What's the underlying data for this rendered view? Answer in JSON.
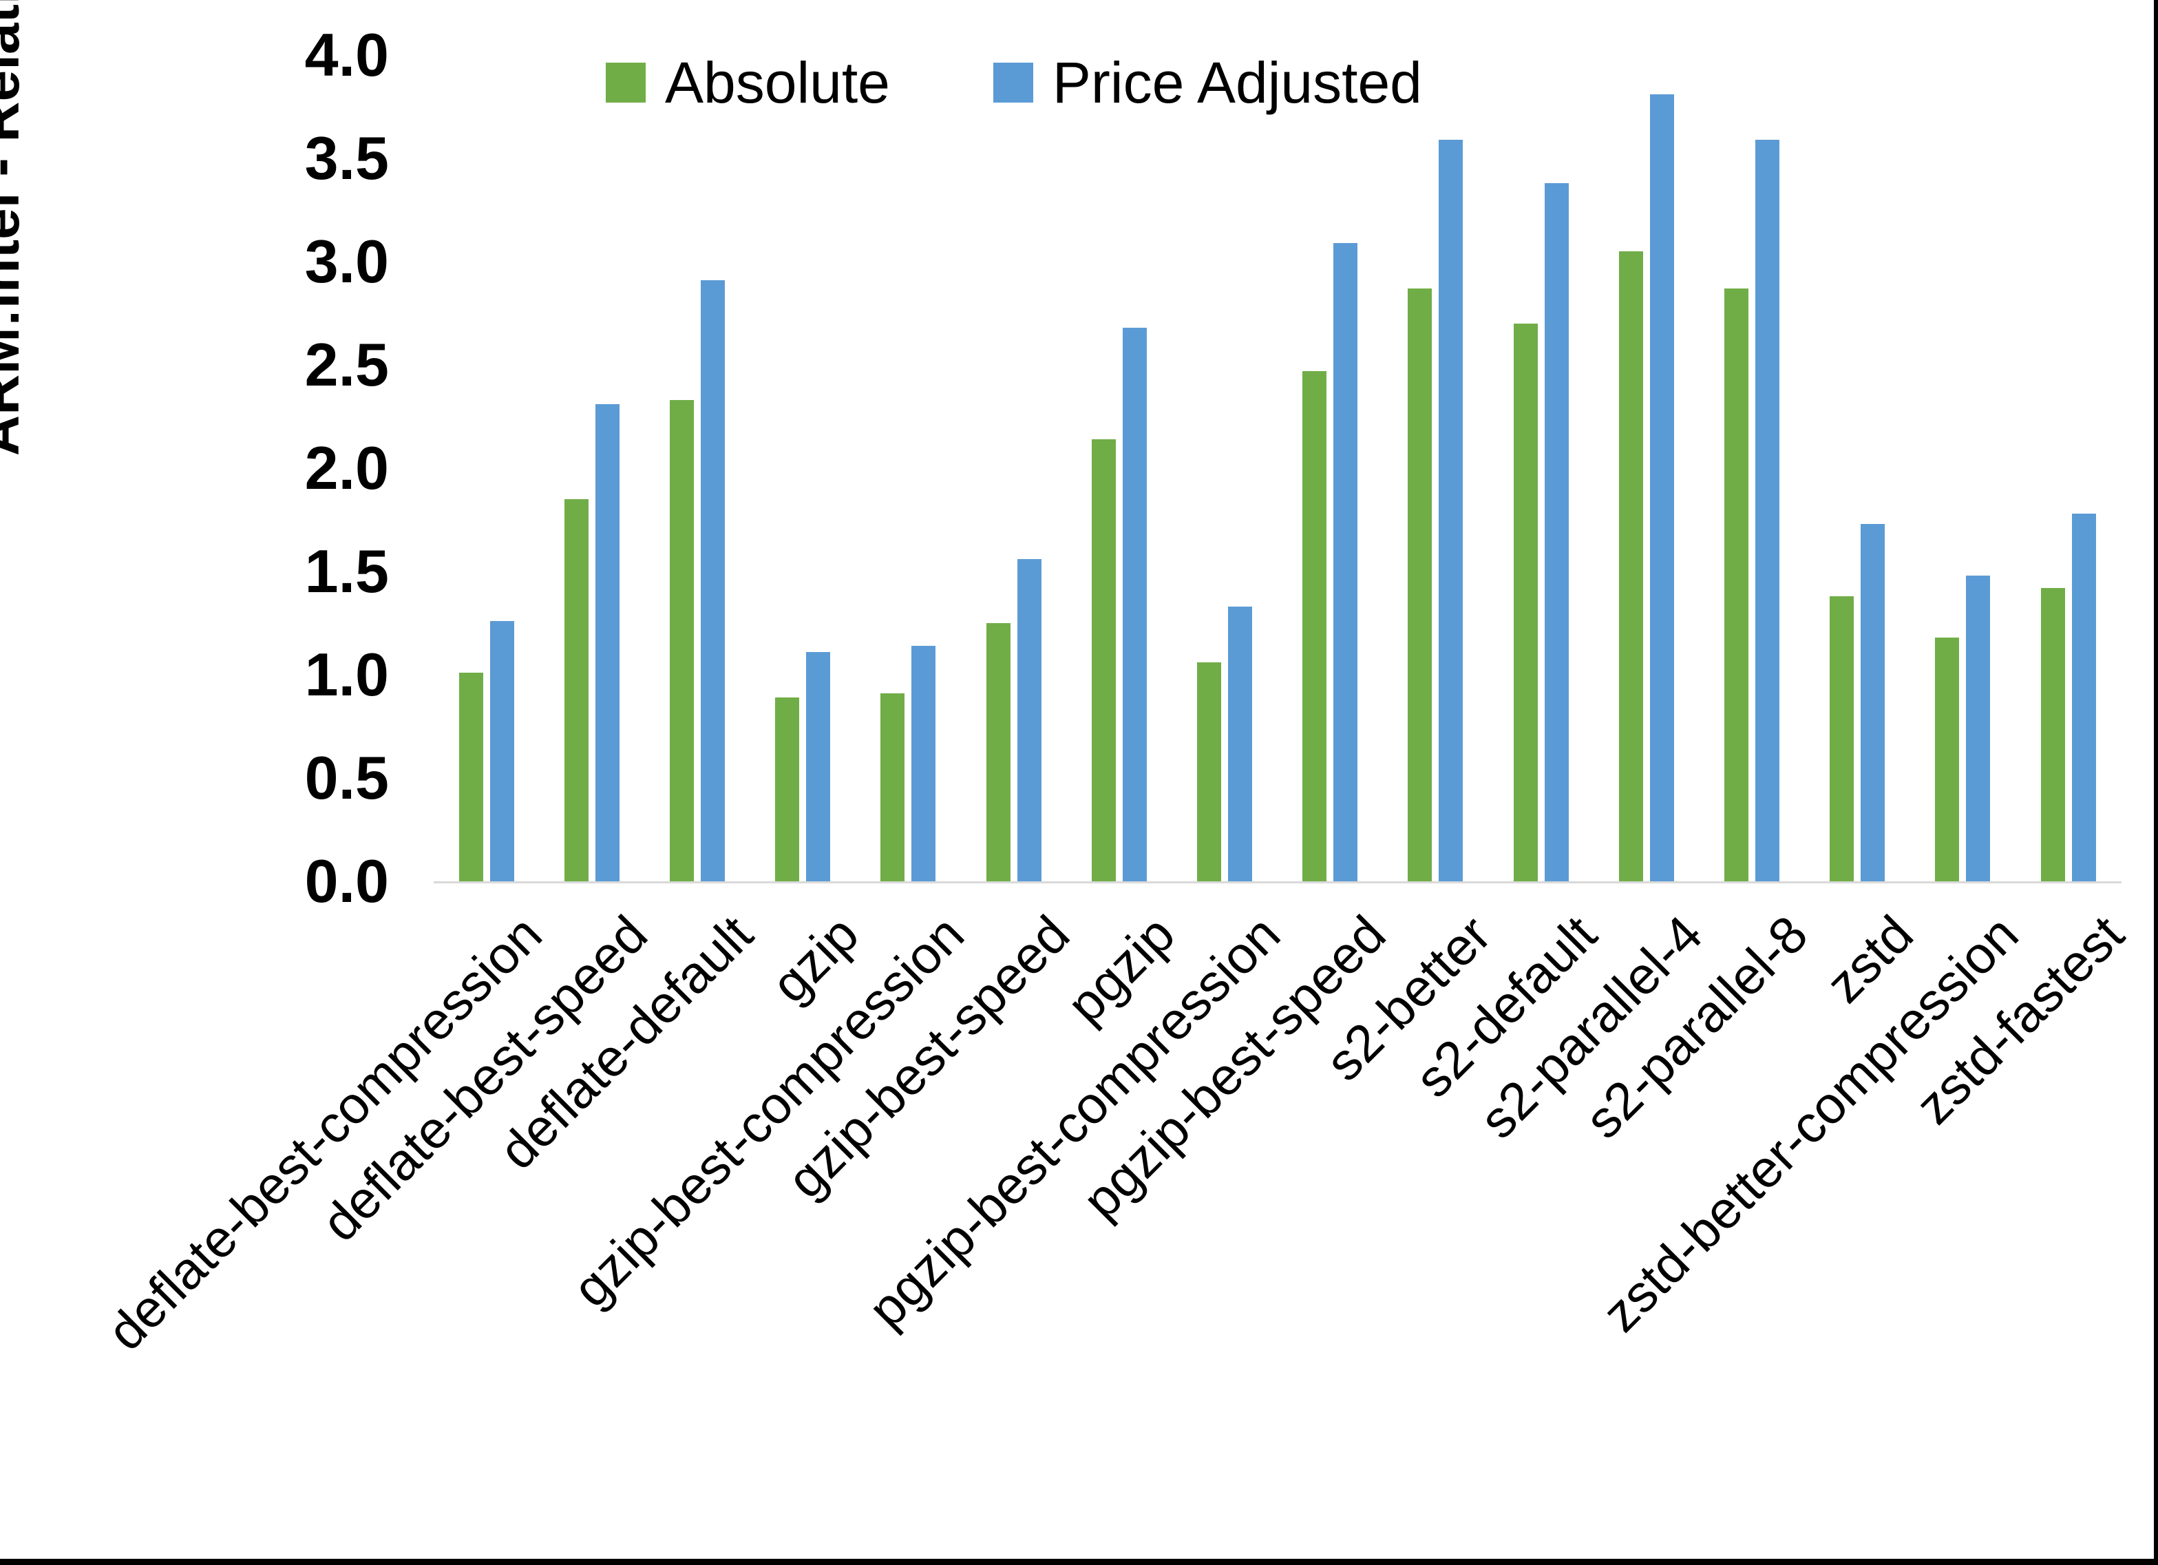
{
  "chart_data": {
    "type": "bar",
    "title": "",
    "y_axis_title": "ARM:Intel - Relative Performance",
    "legend_position": "top-center",
    "grid": "off",
    "ylim": [
      0.0,
      4.0
    ],
    "ytick_step": 0.5,
    "ytick_labels": [
      "0.0",
      "0.5",
      "1.0",
      "1.5",
      "2.0",
      "2.5",
      "3.0",
      "3.5",
      "4.0"
    ],
    "categories": [
      "deflate-best-compression",
      "deflate-best-speed",
      "deflate-default",
      "gzip",
      "gzip-best-compression",
      "gzip-best-speed",
      "pgzip",
      "pgzip-best-compression",
      "pgzip-best-speed",
      "s2-better",
      "s2-default",
      "s2-parallel-4",
      "s2-parallel-8",
      "zstd",
      "zstd-better-compression",
      "zstd-fastest"
    ],
    "series": [
      {
        "name": "Absolute",
        "color": "#70AD47",
        "values": [
          1.01,
          1.85,
          2.33,
          0.89,
          0.91,
          1.25,
          2.14,
          1.06,
          2.47,
          2.87,
          2.7,
          3.05,
          2.87,
          1.38,
          1.18,
          1.42
        ]
      },
      {
        "name": "Price Adjusted",
        "color": "#5B9BD5",
        "values": [
          1.26,
          2.31,
          2.91,
          1.11,
          1.14,
          1.56,
          2.68,
          1.33,
          3.09,
          3.59,
          3.38,
          3.81,
          3.59,
          1.73,
          1.48,
          1.78
        ]
      }
    ],
    "axis_line_color": "#D9D9D9",
    "background_color": "#FFFFFF",
    "border_color": "#000000"
  }
}
